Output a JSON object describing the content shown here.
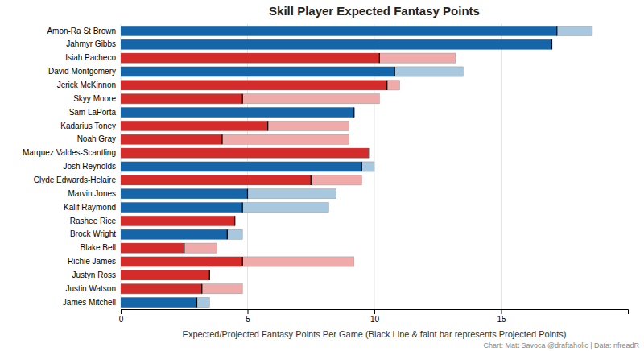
{
  "chart_data": {
    "type": "bar",
    "orientation": "horizontal",
    "title": "Skill Player Expected Fantasy Points",
    "x_label": "Expected/Projected Fantasy Points Per Game (Black Line & faint bar represents Projected Points)",
    "annotations": [
      "Chart: Matt Savoca @draftaholic | Data: nfreadR"
    ],
    "categories": [
      "Amon-Ra St Brown",
      "Jahmyr Gibbs",
      "Isiah Pacheco",
      "David Montgomery",
      "Jerick McKinnon",
      "Skyy Moore",
      "Sam LaPorta",
      "Kadarius Toney",
      "Noah Gray",
      "Marquez Valdes-Scantling",
      "Josh Reynolds",
      "Clyde Edwards-Helaire",
      "Marvin Jones",
      "Kalif Raymond",
      "Rashee Rice",
      "Brock Wright",
      "Blake Bell",
      "Richie James",
      "Justyn Ross",
      "Justin Watson",
      "James Mitchell"
    ],
    "series": [
      {
        "values": [
          18.6,
          17.0,
          13.2,
          13.5,
          11.0,
          10.2,
          9.2,
          9.0,
          9.0,
          9.8,
          10.0,
          9.5,
          8.5,
          8.2,
          4.5,
          4.8,
          3.8,
          9.2,
          3.5,
          4.8,
          3.5
        ],
        "colors": [
          "#A8C8E0",
          "#A8C8E0",
          "#F0AAAA",
          "#A8C8E0",
          "#F0AAAA",
          "#F0AAAA",
          "#A8C8E0",
          "#F0AAAA",
          "#F0AAAA",
          "#F0AAAA",
          "#A8C8E0",
          "#F0AAAA",
          "#A8C8E0",
          "#A8C8E0",
          "#F0AAAA",
          "#A8C8E0",
          "#F0AAAA",
          "#F0AAAA",
          "#F0AAAA",
          "#F0AAAA",
          "#A8C8E0"
        ]
      },
      {
        "values": [
          17.2,
          17.0,
          10.2,
          10.8,
          10.5,
          4.8,
          9.2,
          5.8,
          4.0,
          9.8,
          9.5,
          7.5,
          5.0,
          4.8,
          4.5,
          4.2,
          2.5,
          4.8,
          3.5,
          3.2,
          3.0
        ],
        "colors": [
          "#1565A8",
          "#1565A8",
          "#D42B2B",
          "#1565A8",
          "#D42B2B",
          "#D42B2B",
          "#1565A8",
          "#D42B2B",
          "#D42B2B",
          "#D42B2B",
          "#1565A8",
          "#D42B2B",
          "#1565A8",
          "#1565A8",
          "#D42B2B",
          "#1565A8",
          "#D42B2B",
          "#D42B2B",
          "#D42B2B",
          "#D42B2B",
          "#1565A8"
        ]
      }
    ],
    "xlim": [
      0,
      20
    ],
    "xticks": [
      0,
      5,
      10,
      15
    ],
    "grid": true
  }
}
